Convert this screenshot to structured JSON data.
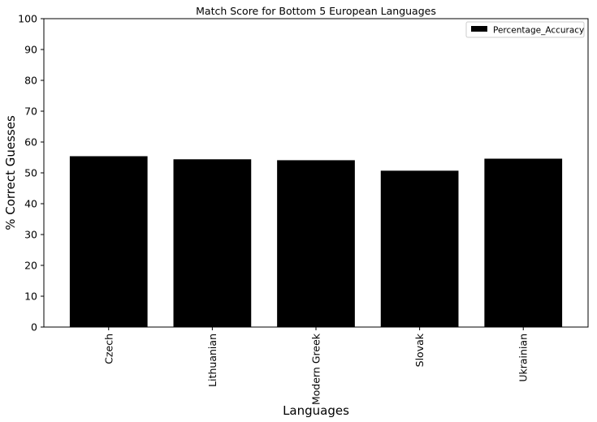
{
  "chart_data": {
    "type": "bar",
    "title": "Match Score for Bottom 5 European Languages",
    "xlabel": "Languages",
    "ylabel": "% Correct Guesses",
    "categories": [
      "Czech",
      "Lithuanian",
      "Modern Greek",
      "Slovak",
      "Ukrainian"
    ],
    "series": [
      {
        "name": "Percentage_Accuracy",
        "values": [
          55.4,
          54.4,
          54.1,
          50.7,
          54.6
        ]
      }
    ],
    "ylim": [
      0,
      100
    ],
    "yticks": [
      0,
      10,
      20,
      30,
      40,
      50,
      60,
      70,
      80,
      90,
      100
    ],
    "grid": false,
    "legend_position": "top-right",
    "bar_color": "#000000"
  }
}
